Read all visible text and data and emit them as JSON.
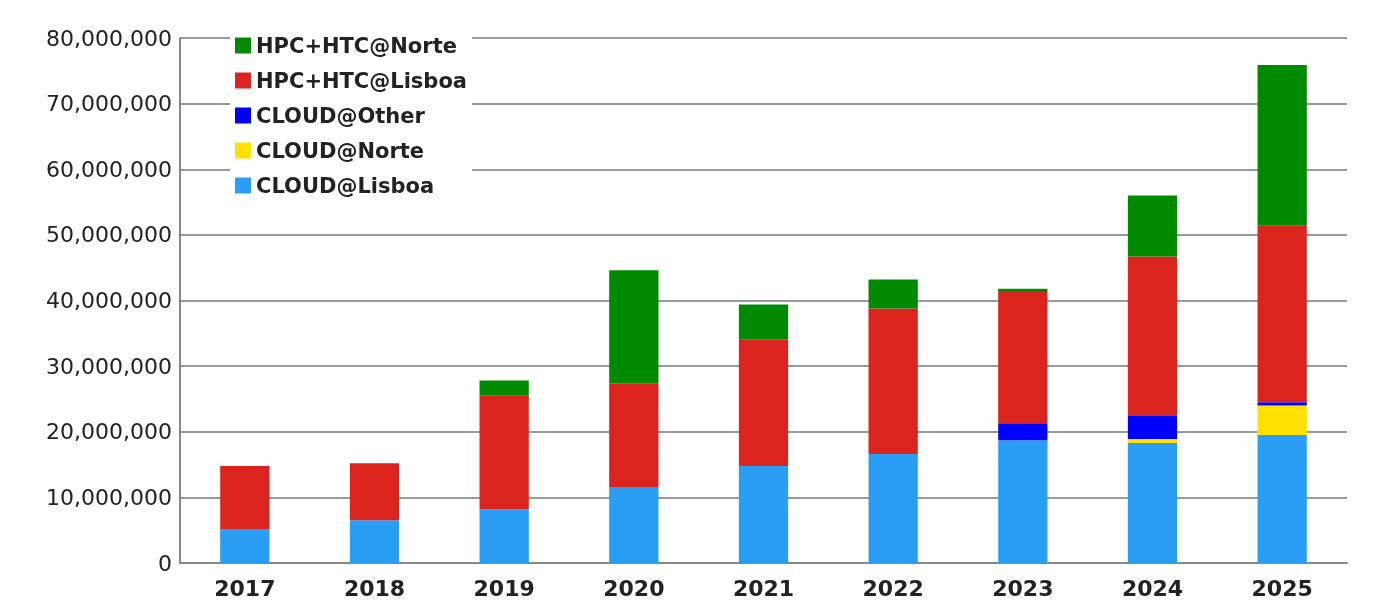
{
  "chart_data": {
    "type": "bar",
    "stacked": true,
    "categories": [
      "2017",
      "2018",
      "2019",
      "2020",
      "2021",
      "2022",
      "2023",
      "2024",
      "2025"
    ],
    "series": [
      {
        "name": "CLOUD@Lisboa",
        "color": "#2a9df4",
        "values": [
          5200000,
          6500000,
          8200000,
          11600000,
          14800000,
          16600000,
          18700000,
          18300000,
          19500000
        ]
      },
      {
        "name": "CLOUD@Norte",
        "color": "#ffe000",
        "values": [
          0,
          0,
          0,
          0,
          0,
          0,
          0,
          600000,
          4500000
        ]
      },
      {
        "name": "CLOUD@Other",
        "color": "#0000ff",
        "values": [
          0,
          0,
          0,
          0,
          0,
          0,
          2600000,
          3500000,
          500000
        ]
      },
      {
        "name": "HPC+HTC@Lisboa",
        "color": "#dc241f",
        "values": [
          9600000,
          8700000,
          17300000,
          15800000,
          19300000,
          22200000,
          20000000,
          24300000,
          26900000
        ]
      },
      {
        "name": "HPC+HTC@Norte",
        "color": "#008a00",
        "values": [
          0,
          0,
          2300000,
          17200000,
          5300000,
          4400000,
          500000,
          9300000,
          24500000
        ]
      }
    ],
    "ylim": [
      0,
      80000000
    ],
    "yticks": [
      0,
      {
        "value": 10000000,
        "label": "10,000,000"
      },
      {
        "value": 20000000,
        "label": "20,000,000"
      },
      {
        "value": 30000000,
        "label": "30,000,000"
      },
      {
        "value": 40000000,
        "label": "40,000,000"
      },
      {
        "value": 50000000,
        "label": "50,000,000"
      },
      {
        "value": 60000000,
        "label": "60,000,000"
      },
      {
        "value": 70000000,
        "label": "70,000,000"
      },
      {
        "value": 80000000,
        "label": "80,000,000"
      }
    ],
    "grid": "y",
    "legend": "top left"
  }
}
